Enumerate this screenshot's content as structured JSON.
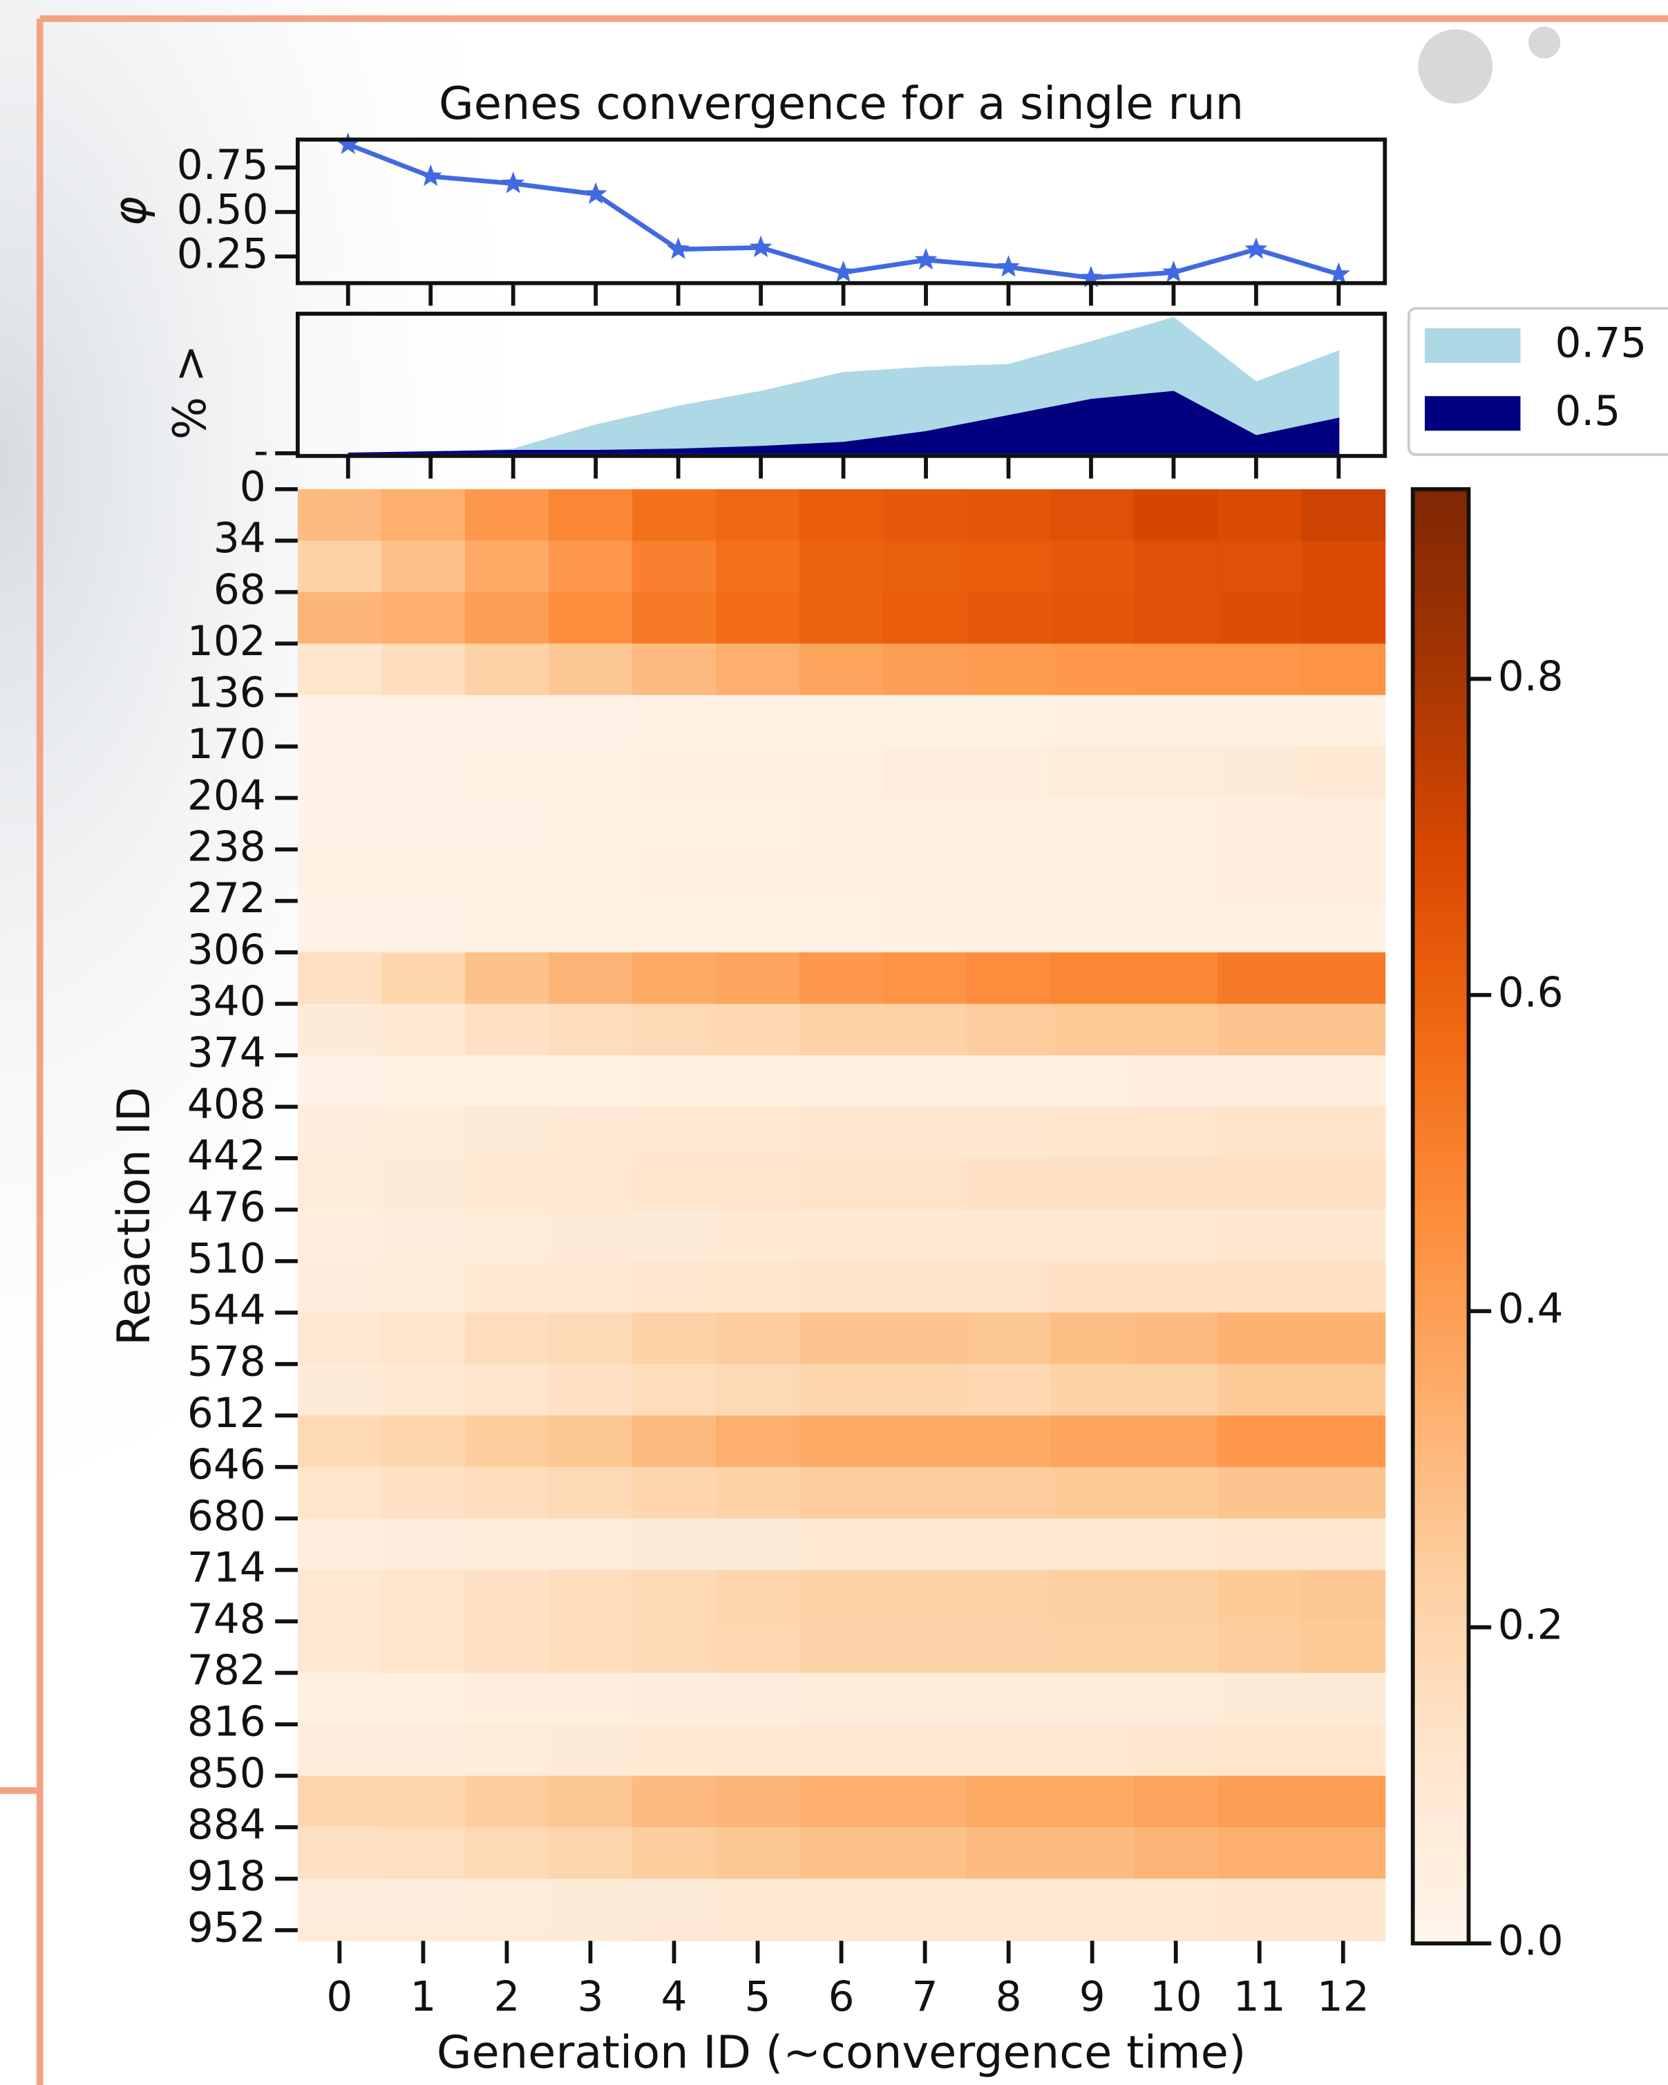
{
  "chart_data": [
    {
      "type": "line",
      "title": "Genes convergence for a single run",
      "ylabel": "φ",
      "x": [
        0,
        1,
        2,
        3,
        4,
        5,
        6,
        7,
        8,
        9,
        10,
        11,
        12
      ],
      "values": [
        0.88,
        0.7,
        0.66,
        0.6,
        0.29,
        0.3,
        0.16,
        0.23,
        0.19,
        0.13,
        0.16,
        0.29,
        0.15
      ],
      "color": "#4169e1",
      "marker": "star",
      "xlim": [
        -0.61,
        12.56
      ],
      "xticks": [
        0,
        1,
        2,
        3,
        4,
        5,
        6,
        7,
        8,
        9,
        10,
        11,
        12
      ],
      "ylim": [
        0.1,
        0.907
      ],
      "yticks": [
        {
          "value": 0.25,
          "label": "0.25"
        },
        {
          "value": 0.5,
          "label": "0.50"
        },
        {
          "value": 0.75,
          "label": "0.75"
        }
      ]
    },
    {
      "type": "area",
      "ylabel": "% >",
      "x": [
        0,
        1,
        2,
        3,
        4,
        5,
        6,
        7,
        8,
        9,
        10,
        11,
        12
      ],
      "series": [
        {
          "name": "0.75",
          "color": "#add8e6",
          "values": [
            0,
            0,
            0.015,
            0.105,
            0.175,
            0.23,
            0.3,
            0.32,
            0.33,
            0.415,
            0.505,
            0.265,
            0.38
          ]
        },
        {
          "name": "0.5",
          "color": "#000080",
          "values": [
            0,
            0.005,
            0.01,
            0.01,
            0.015,
            0.025,
            0.04,
            0.08,
            0.14,
            0.2,
            0.23,
            0.065,
            0.13
          ]
        }
      ],
      "xlim": [
        -0.61,
        12.56
      ],
      "xticks": [
        0,
        1,
        2,
        3,
        4,
        5,
        6,
        7,
        8,
        9,
        10,
        11,
        12
      ],
      "ylim": [
        -0.01,
        0.52
      ],
      "yticks": [
        {
          "value": 0,
          "label": "-"
        }
      ],
      "legend": "outside-right"
    },
    {
      "type": "heatmap",
      "xlabel": "Generation ID (~convergence time)",
      "ylabel": "Reaction ID",
      "categories": [
        "0",
        "1",
        "2",
        "3",
        "4",
        "5",
        "6",
        "7",
        "8",
        "9",
        "10",
        "11",
        "12"
      ],
      "row_starts": [
        0,
        34,
        68,
        102,
        136,
        170,
        204,
        238,
        272,
        306,
        340,
        374,
        408,
        442,
        476,
        510,
        544,
        578,
        612,
        646,
        680,
        714,
        748,
        782,
        816,
        850,
        884,
        918,
        952
      ],
      "ylim": [
        0,
        959
      ],
      "yticks": [
        0,
        34,
        68,
        102,
        136,
        170,
        204,
        238,
        272,
        306,
        340,
        374,
        408,
        442,
        476,
        510,
        544,
        578,
        612,
        646,
        680,
        714,
        748,
        782,
        816,
        850,
        884,
        918,
        952
      ],
      "values": [
        [
          0.3,
          0.34,
          0.42,
          0.48,
          0.55,
          0.58,
          0.62,
          0.63,
          0.64,
          0.66,
          0.7,
          0.68,
          0.72
        ],
        [
          0.22,
          0.28,
          0.36,
          0.42,
          0.5,
          0.55,
          0.6,
          0.61,
          0.62,
          0.63,
          0.66,
          0.66,
          0.68
        ],
        [
          0.32,
          0.34,
          0.4,
          0.46,
          0.52,
          0.57,
          0.6,
          0.62,
          0.63,
          0.64,
          0.66,
          0.67,
          0.68
        ],
        [
          0.12,
          0.16,
          0.22,
          0.26,
          0.3,
          0.34,
          0.38,
          0.4,
          0.41,
          0.42,
          0.43,
          0.43,
          0.44
        ],
        [
          0.02,
          0.02,
          0.02,
          0.02,
          0.03,
          0.03,
          0.03,
          0.03,
          0.03,
          0.04,
          0.04,
          0.04,
          0.04
        ],
        [
          0.02,
          0.02,
          0.03,
          0.03,
          0.04,
          0.04,
          0.04,
          0.05,
          0.05,
          0.07,
          0.07,
          0.08,
          0.09
        ],
        [
          0.02,
          0.02,
          0.02,
          0.03,
          0.03,
          0.03,
          0.04,
          0.04,
          0.04,
          0.04,
          0.04,
          0.05,
          0.05
        ],
        [
          0.03,
          0.03,
          0.03,
          0.03,
          0.04,
          0.04,
          0.04,
          0.04,
          0.04,
          0.04,
          0.04,
          0.05,
          0.05
        ],
        [
          0.02,
          0.02,
          0.03,
          0.03,
          0.03,
          0.03,
          0.03,
          0.04,
          0.04,
          0.04,
          0.04,
          0.04,
          0.04
        ],
        [
          0.15,
          0.2,
          0.28,
          0.32,
          0.36,
          0.38,
          0.42,
          0.44,
          0.46,
          0.48,
          0.48,
          0.52,
          0.52
        ],
        [
          0.08,
          0.1,
          0.14,
          0.16,
          0.18,
          0.19,
          0.22,
          0.22,
          0.24,
          0.25,
          0.25,
          0.27,
          0.27
        ],
        [
          0.02,
          0.03,
          0.03,
          0.03,
          0.04,
          0.04,
          0.04,
          0.04,
          0.04,
          0.04,
          0.05,
          0.05,
          0.05
        ],
        [
          0.06,
          0.07,
          0.08,
          0.09,
          0.1,
          0.1,
          0.11,
          0.11,
          0.11,
          0.12,
          0.12,
          0.13,
          0.13
        ],
        [
          0.07,
          0.08,
          0.1,
          0.1,
          0.12,
          0.12,
          0.13,
          0.13,
          0.14,
          0.14,
          0.14,
          0.15,
          0.15
        ],
        [
          0.05,
          0.06,
          0.07,
          0.08,
          0.08,
          0.09,
          0.09,
          0.09,
          0.1,
          0.1,
          0.1,
          0.11,
          0.11
        ],
        [
          0.06,
          0.07,
          0.09,
          0.1,
          0.11,
          0.12,
          0.13,
          0.13,
          0.13,
          0.14,
          0.14,
          0.15,
          0.15
        ],
        [
          0.1,
          0.12,
          0.16,
          0.18,
          0.22,
          0.24,
          0.27,
          0.27,
          0.26,
          0.29,
          0.3,
          0.33,
          0.33
        ],
        [
          0.08,
          0.1,
          0.12,
          0.14,
          0.16,
          0.18,
          0.2,
          0.2,
          0.19,
          0.22,
          0.22,
          0.25,
          0.25
        ],
        [
          0.18,
          0.2,
          0.24,
          0.26,
          0.3,
          0.34,
          0.36,
          0.36,
          0.36,
          0.38,
          0.38,
          0.42,
          0.42
        ],
        [
          0.12,
          0.14,
          0.16,
          0.18,
          0.2,
          0.22,
          0.24,
          0.24,
          0.24,
          0.25,
          0.25,
          0.27,
          0.27
        ],
        [
          0.05,
          0.06,
          0.07,
          0.07,
          0.08,
          0.08,
          0.09,
          0.09,
          0.09,
          0.1,
          0.1,
          0.11,
          0.11
        ],
        [
          0.1,
          0.12,
          0.14,
          0.16,
          0.18,
          0.2,
          0.22,
          0.22,
          0.22,
          0.23,
          0.23,
          0.25,
          0.26
        ],
        [
          0.1,
          0.12,
          0.14,
          0.16,
          0.18,
          0.19,
          0.21,
          0.21,
          0.21,
          0.22,
          0.22,
          0.24,
          0.25
        ],
        [
          0.04,
          0.04,
          0.05,
          0.05,
          0.06,
          0.06,
          0.07,
          0.07,
          0.07,
          0.07,
          0.07,
          0.08,
          0.08
        ],
        [
          0.06,
          0.06,
          0.07,
          0.08,
          0.09,
          0.09,
          0.1,
          0.1,
          0.1,
          0.1,
          0.11,
          0.12,
          0.12
        ],
        [
          0.2,
          0.2,
          0.24,
          0.26,
          0.3,
          0.32,
          0.34,
          0.34,
          0.36,
          0.36,
          0.38,
          0.4,
          0.4
        ],
        [
          0.14,
          0.15,
          0.18,
          0.2,
          0.24,
          0.26,
          0.28,
          0.28,
          0.3,
          0.3,
          0.32,
          0.34,
          0.34
        ],
        [
          0.06,
          0.06,
          0.07,
          0.08,
          0.08,
          0.09,
          0.09,
          0.09,
          0.1,
          0.1,
          0.1,
          0.11,
          0.11
        ],
        [
          0.08,
          0.08,
          0.08,
          0.08,
          0.09,
          0.09,
          0.09,
          0.09,
          0.09,
          0.09,
          0.1,
          0.1,
          0.1
        ]
      ],
      "colormap": [
        "#fff5eb",
        "#fee6ce",
        "#fdd0a2",
        "#fdae6b",
        "#fd8d3c",
        "#f16913",
        "#d94801",
        "#a63603",
        "#7f2704"
      ],
      "clim": [
        0,
        0.92
      ],
      "cticks": [
        {
          "value": 0,
          "label": "0.0"
        },
        0.2,
        0.4,
        0.6,
        0.8
      ]
    }
  ]
}
